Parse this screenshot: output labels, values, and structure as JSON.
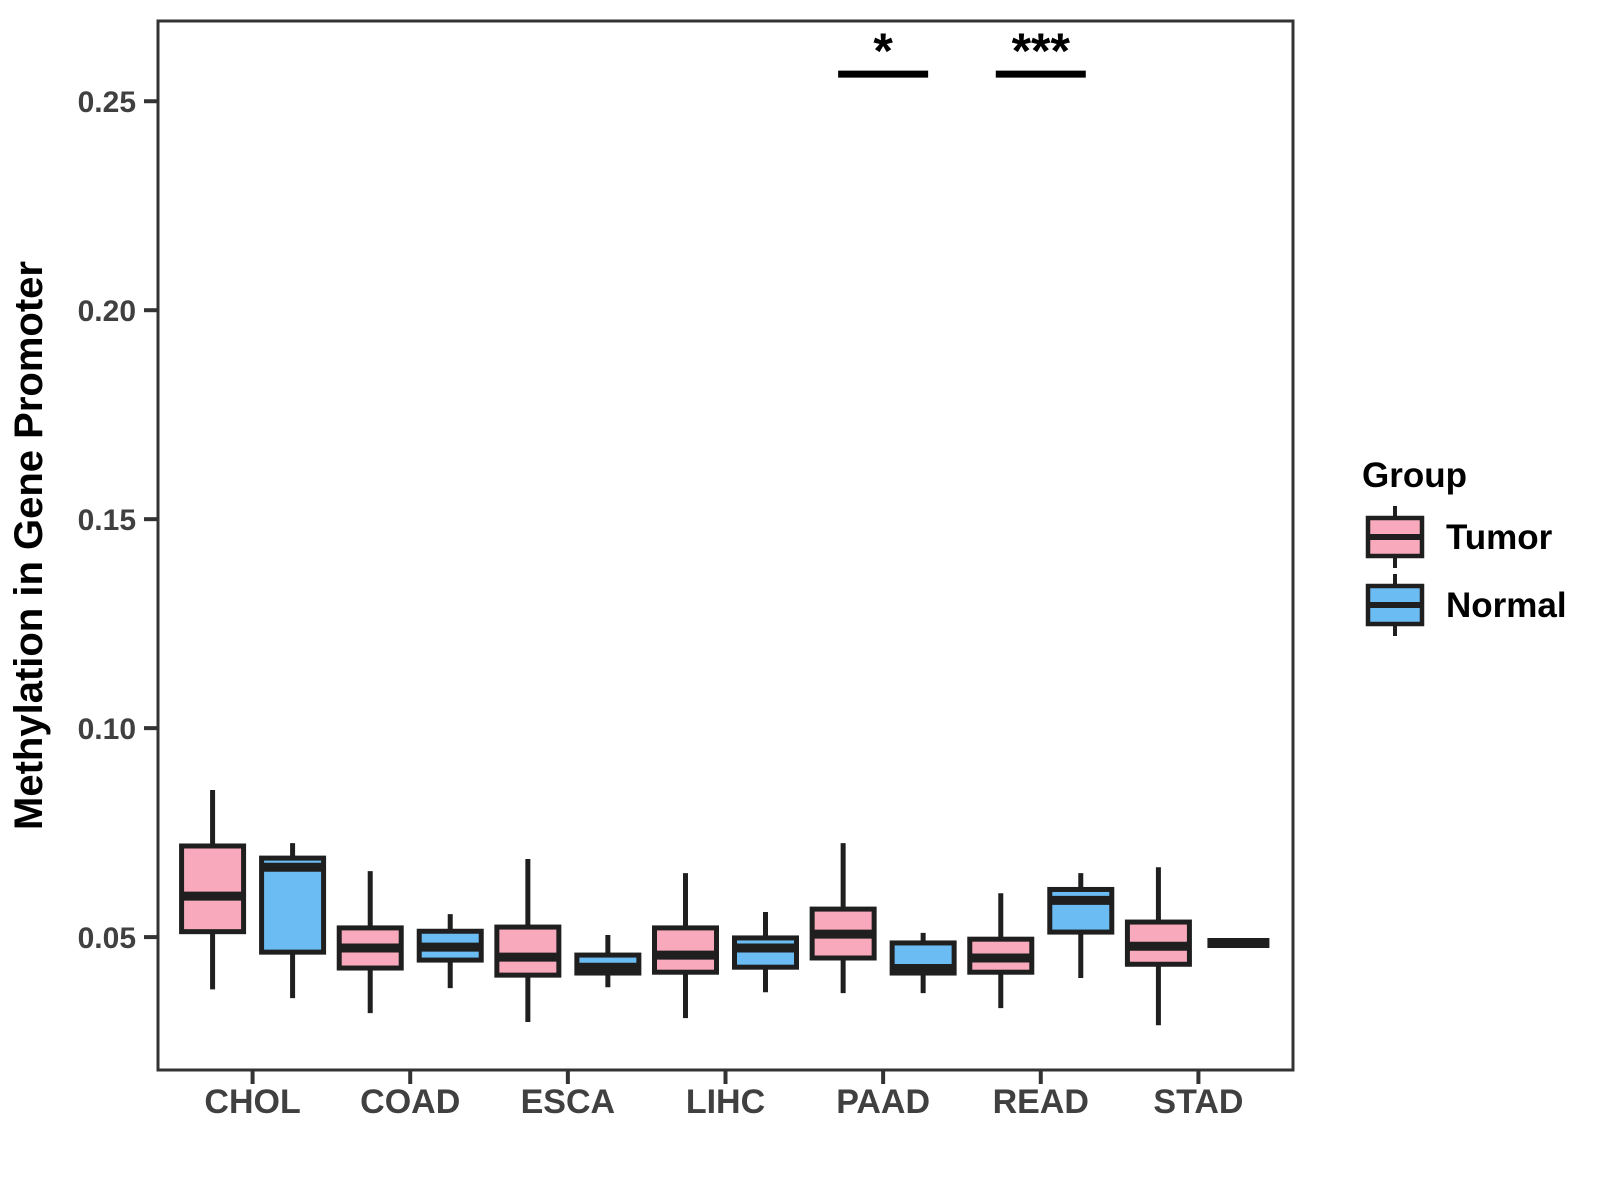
{
  "figure": {
    "background": "#FFFFFF"
  },
  "chart_data": {
    "type": "boxplot",
    "title": "",
    "xlabel": "",
    "ylabel": "Methylation in Gene Promoter",
    "ylim": [
      0.0182,
      0.2692
    ],
    "grid": "off",
    "y_ticks": [
      {
        "value": 0.05,
        "label": "0.05"
      },
      {
        "value": 0.1,
        "label": "0.10"
      },
      {
        "value": 0.15,
        "label": "0.15"
      },
      {
        "value": 0.2,
        "label": "0.20"
      },
      {
        "value": 0.25,
        "label": "0.25"
      }
    ],
    "categories": [
      "CHOL",
      "COAD",
      "ESCA",
      "LIHC",
      "PAAD",
      "READ",
      "STAD"
    ],
    "groups": [
      {
        "name": "Tumor",
        "color": "#F9A9BC"
      },
      {
        "name": "Normal",
        "color": "#6ABCF3"
      }
    ],
    "boxes": [
      {
        "category": "CHOL",
        "group": "Tumor",
        "min": 0.0375,
        "q1": 0.0513,
        "median": 0.0598,
        "q3": 0.0718,
        "max": 0.0852
      },
      {
        "category": "CHOL",
        "group": "Normal",
        "min": 0.0354,
        "q1": 0.0464,
        "median": 0.0667,
        "q3": 0.0689,
        "max": 0.0725
      },
      {
        "category": "COAD",
        "group": "Tumor",
        "min": 0.0318,
        "q1": 0.0426,
        "median": 0.0474,
        "q3": 0.0522,
        "max": 0.0658
      },
      {
        "category": "COAD",
        "group": "Normal",
        "min": 0.0378,
        "q1": 0.0445,
        "median": 0.0476,
        "q3": 0.0514,
        "max": 0.0555
      },
      {
        "category": "ESCA",
        "group": "Tumor",
        "min": 0.0297,
        "q1": 0.0409,
        "median": 0.0452,
        "q3": 0.0524,
        "max": 0.0687
      },
      {
        "category": "ESCA",
        "group": "Normal",
        "min": 0.038,
        "q1": 0.0414,
        "median": 0.0428,
        "q3": 0.0457,
        "max": 0.0505
      },
      {
        "category": "LIHC",
        "group": "Tumor",
        "min": 0.0306,
        "q1": 0.0416,
        "median": 0.0457,
        "q3": 0.0522,
        "max": 0.0653
      },
      {
        "category": "LIHC",
        "group": "Normal",
        "min": 0.0368,
        "q1": 0.0428,
        "median": 0.0474,
        "q3": 0.0498,
        "max": 0.056
      },
      {
        "category": "PAAD",
        "group": "Tumor",
        "min": 0.0366,
        "q1": 0.045,
        "median": 0.0507,
        "q3": 0.0567,
        "max": 0.0725
      },
      {
        "category": "PAAD",
        "group": "Normal",
        "min": 0.0366,
        "q1": 0.0414,
        "median": 0.0425,
        "q3": 0.0486,
        "max": 0.051
      },
      {
        "category": "READ",
        "group": "Tumor",
        "min": 0.033,
        "q1": 0.0416,
        "median": 0.045,
        "q3": 0.0495,
        "max": 0.0605
      },
      {
        "category": "READ",
        "group": "Normal",
        "min": 0.0402,
        "q1": 0.0512,
        "median": 0.0588,
        "q3": 0.0614,
        "max": 0.0653
      },
      {
        "category": "STAD",
        "group": "Tumor",
        "min": 0.0289,
        "q1": 0.0435,
        "median": 0.0478,
        "q3": 0.0536,
        "max": 0.0667
      },
      {
        "category": "STAD",
        "group": "Normal",
        "median": 0.0486,
        "median_only": true
      }
    ],
    "significance": [
      {
        "category": "PAAD",
        "label": "*",
        "bar_value": 0.2565
      },
      {
        "category": "READ",
        "label": "***",
        "bar_value": 0.2565
      }
    ],
    "legend": {
      "title": "Group",
      "position": "right",
      "items": [
        {
          "label": "Tumor",
          "color": "#F9A9BC"
        },
        {
          "label": "Normal",
          "color": "#6ABCF3"
        }
      ]
    },
    "style": {
      "box_border": "#1F1F1F",
      "panel_border": "#333333",
      "axis_tick_color": "#333333",
      "axis_text_color": "#404040",
      "text_color": "#000000",
      "significance_color": "#000000"
    }
  }
}
